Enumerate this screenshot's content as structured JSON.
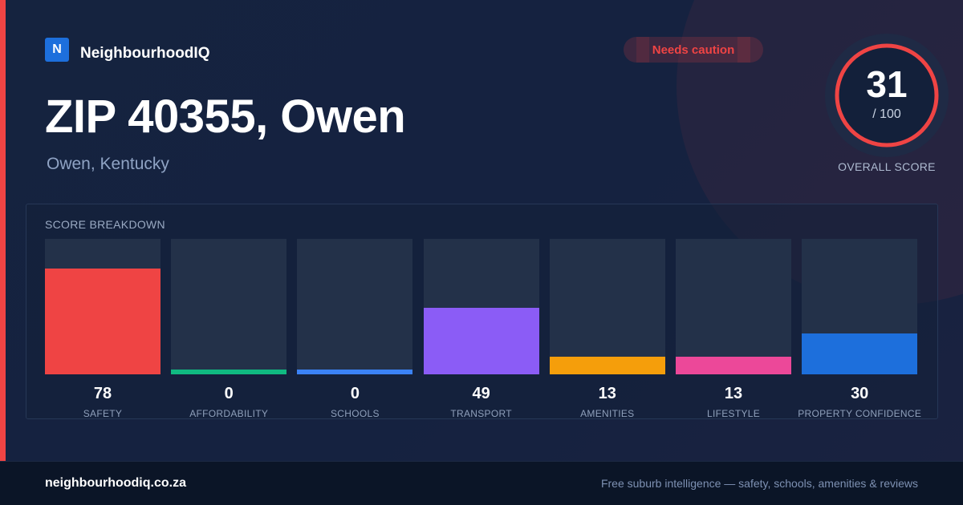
{
  "brand": {
    "logo_letter": "N",
    "name": "NeighbourhoodIQ"
  },
  "header": {
    "title": "ZIP 40355, Owen",
    "subtitle": "Owen, Kentucky",
    "badge": "Needs caution"
  },
  "score": {
    "value": "31",
    "max": "/ 100",
    "label": "OVERALL SCORE",
    "fraction": 0.31
  },
  "colors": {
    "accent": "#ef4444",
    "brand": "#1d6fdc",
    "safety": "#ef4444",
    "affordability": "#10b981",
    "schools": "#3b82f6",
    "transport": "#8b5cf6",
    "amenities": "#f59e0b",
    "lifestyle": "#ec4899",
    "property_confidence": "#1d6fdc"
  },
  "breakdown": {
    "title": "SCORE BREAKDOWN",
    "items": [
      {
        "value": 78,
        "label": "SAFETY",
        "color": "#ef4444"
      },
      {
        "value": 0,
        "label": "AFFORDABILITY",
        "color": "#10b981"
      },
      {
        "value": 0,
        "label": "SCHOOLS",
        "color": "#3b82f6"
      },
      {
        "value": 49,
        "label": "TRANSPORT",
        "color": "#8b5cf6"
      },
      {
        "value": 13,
        "label": "AMENITIES",
        "color": "#f59e0b"
      },
      {
        "value": 13,
        "label": "LIFESTYLE",
        "color": "#ec4899"
      },
      {
        "value": 30,
        "label": "PROPERTY CONFIDENCE",
        "color": "#1d6fdc"
      }
    ]
  },
  "footer": {
    "domain": "neighbourhoodiq.co.za",
    "tagline": "Free suburb intelligence — safety, schools, amenities & reviews"
  }
}
